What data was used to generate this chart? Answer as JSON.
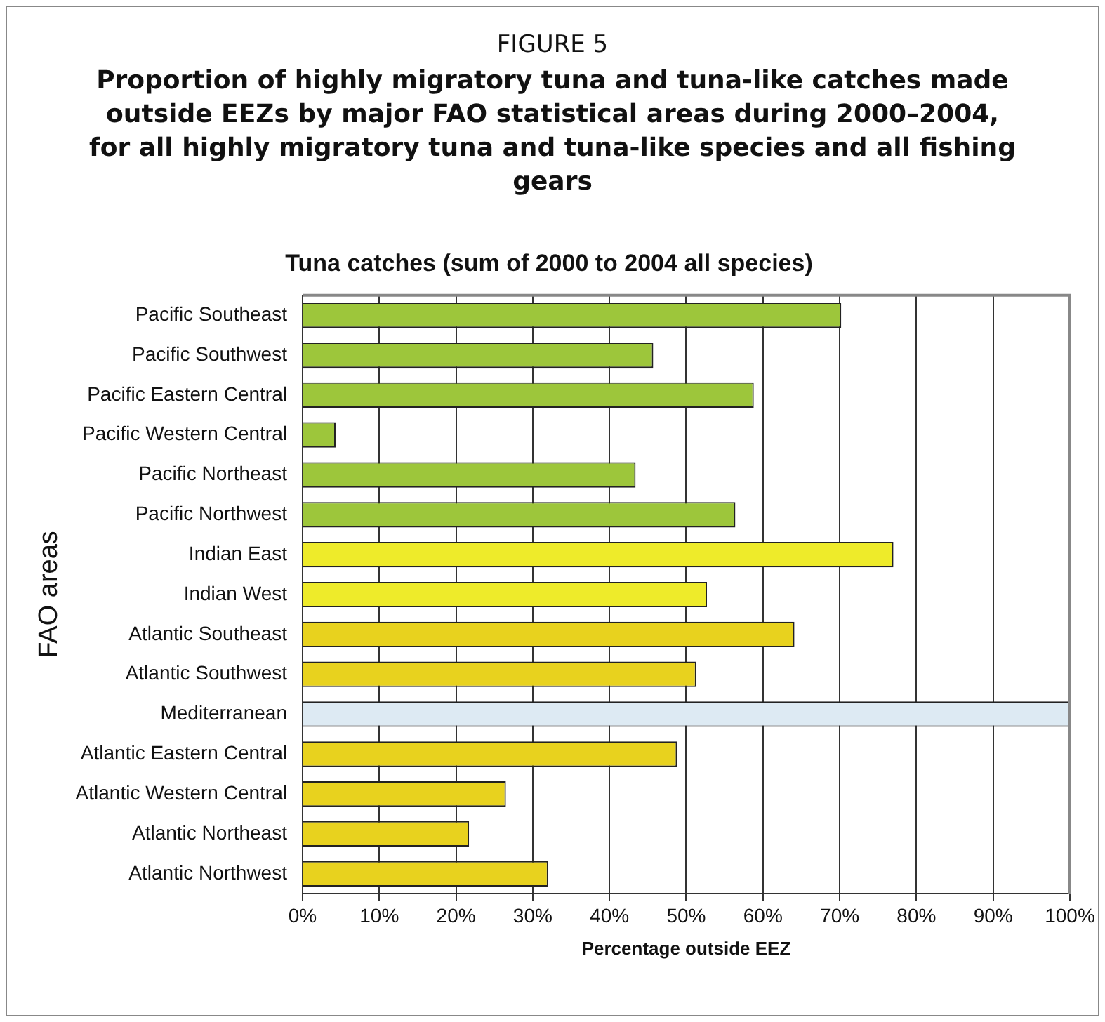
{
  "chart_data": {
    "type": "bar",
    "orientation": "horizontal",
    "annotations": [
      "FIGURE 5"
    ],
    "subtitle": "Proportion of highly migratory tuna and tuna-like catches made outside EEZs by major FAO statistical areas during 2000–2004, for all highly migratory tuna and tuna-like species and all fishing gears",
    "title": "Tuna catches (sum of 2000 to 2004 all species)",
    "xlabel": "Percentage outside EEZ",
    "ylabel": "FAO areas",
    "categories": [
      "Pacific Southeast",
      "Pacific Southwest",
      "Pacific Eastern Central",
      "Pacific Western Central",
      "Pacific Northeast",
      "Pacific Northwest",
      "Indian East",
      "Indian West",
      "Atlantic Southeast",
      "Atlantic Southwest",
      "Mediterranean",
      "Atlantic Eastern Central",
      "Atlantic Western Central",
      "Atlantic Northeast",
      "Atlantic Northwest"
    ],
    "values": [
      70.2,
      45.7,
      58.8,
      4.3,
      43.4,
      56.4,
      77,
      52.7,
      64.1,
      51.3,
      100,
      48.8,
      26.5,
      21.7,
      32
    ],
    "colors": [
      "#9dc63b",
      "#9dc63b",
      "#9dc63b",
      "#9dc63b",
      "#9dc63b",
      "#9dc63b",
      "#eeeb2a",
      "#eeeb2a",
      "#e8d21e",
      "#e8d21e",
      "#ddeaf3",
      "#e8d21e",
      "#e8d21e",
      "#e8d21e",
      "#e8d21e"
    ],
    "xlim": [
      0,
      100
    ],
    "xticks": [
      {
        "value": 0,
        "label": "0%"
      },
      {
        "value": 10,
        "label": "10%"
      },
      {
        "value": 20,
        "label": "20%"
      },
      {
        "value": 30,
        "label": "30%"
      },
      {
        "value": 40,
        "label": "40%"
      },
      {
        "value": 50,
        "label": "50%"
      },
      {
        "value": 60,
        "label": "60%"
      },
      {
        "value": 70,
        "label": "70%"
      },
      {
        "value": 80,
        "label": "80%"
      },
      {
        "value": 90,
        "label": "90%"
      },
      {
        "value": 100,
        "label": "100%"
      }
    ],
    "grid": "x",
    "legend": false
  }
}
